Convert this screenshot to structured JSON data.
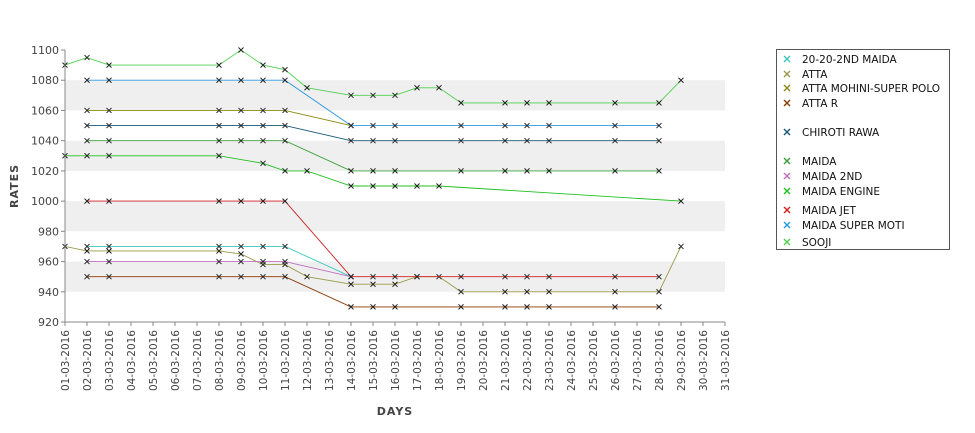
{
  "chart_data": {
    "type": "line",
    "title": "",
    "xlabel": "DAYS",
    "ylabel": "RATES",
    "ylim": [
      920,
      1100
    ],
    "yticks": [
      920,
      940,
      960,
      980,
      1000,
      1020,
      1040,
      1060,
      1080,
      1100
    ],
    "grid": "alternating horizontal bands",
    "legend_position": "right",
    "categories": [
      "01-03-2016",
      "02-03-2016",
      "03-03-2016",
      "04-03-2016",
      "05-03-2016",
      "06-03-2016",
      "07-03-2016",
      "08-03-2016",
      "09-03-2016",
      "10-03-2016",
      "11-03-2016",
      "12-03-2016",
      "13-03-2016",
      "14-03-2016",
      "15-03-2016",
      "16-03-2016",
      "17-03-2016",
      "18-03-2016",
      "19-03-2016",
      "20-03-2016",
      "21-03-2016",
      "22-03-2016",
      "23-03-2016",
      "24-03-2016",
      "25-03-2016",
      "26-03-2016",
      "27-03-2016",
      "28-03-2016",
      "29-03-2016",
      "30-03-2016",
      "31-03-2016"
    ],
    "series": [
      {
        "name": "20-20-2ND MAIDA",
        "color": "#3ec8c0",
        "points": [
          [
            2,
            970
          ],
          [
            3,
            970
          ],
          [
            8,
            970
          ],
          [
            9,
            970
          ],
          [
            10,
            970
          ],
          [
            11,
            970
          ],
          [
            14,
            950
          ]
        ]
      },
      {
        "name": "ATTA",
        "color": "#9a9a4a",
        "points": [
          [
            1,
            970
          ],
          [
            2,
            967
          ],
          [
            3,
            967
          ],
          [
            8,
            967
          ],
          [
            9,
            965
          ],
          [
            10,
            958
          ],
          [
            11,
            958
          ],
          [
            12,
            950
          ],
          [
            14,
            945
          ],
          [
            15,
            945
          ],
          [
            16,
            945
          ],
          [
            17,
            950
          ],
          [
            18,
            950
          ],
          [
            19,
            940
          ],
          [
            21,
            940
          ],
          [
            22,
            940
          ],
          [
            23,
            940
          ],
          [
            26,
            940
          ],
          [
            28,
            940
          ],
          [
            29,
            970
          ]
        ]
      },
      {
        "name": "ATTA MOHINI-SUPER POLO",
        "color": "#8a8a10",
        "points": [
          [
            2,
            1060
          ],
          [
            3,
            1060
          ],
          [
            8,
            1060
          ],
          [
            9,
            1060
          ],
          [
            10,
            1060
          ],
          [
            11,
            1060
          ],
          [
            14,
            1050
          ]
        ]
      },
      {
        "name": "ATTA R",
        "color": "#8b3a00",
        "points": [
          [
            2,
            950
          ],
          [
            3,
            950
          ],
          [
            8,
            950
          ],
          [
            9,
            950
          ],
          [
            10,
            950
          ],
          [
            11,
            950
          ],
          [
            14,
            930
          ],
          [
            15,
            930
          ],
          [
            16,
            930
          ],
          [
            19,
            930
          ],
          [
            21,
            930
          ],
          [
            22,
            930
          ],
          [
            23,
            930
          ],
          [
            26,
            930
          ],
          [
            28,
            930
          ]
        ]
      },
      {
        "name": "CHIROTI RAWA",
        "color": "#1a5a7a",
        "points": [
          [
            2,
            1050
          ],
          [
            3,
            1050
          ],
          [
            8,
            1050
          ],
          [
            9,
            1050
          ],
          [
            10,
            1050
          ],
          [
            11,
            1050
          ],
          [
            14,
            1040
          ],
          [
            15,
            1040
          ],
          [
            16,
            1040
          ],
          [
            19,
            1040
          ],
          [
            21,
            1040
          ],
          [
            22,
            1040
          ],
          [
            23,
            1040
          ],
          [
            26,
            1040
          ],
          [
            28,
            1040
          ]
        ]
      },
      {
        "name": "MAIDA",
        "color": "#3aa03a",
        "points": [
          [
            2,
            1040
          ],
          [
            3,
            1040
          ],
          [
            8,
            1040
          ],
          [
            9,
            1040
          ],
          [
            10,
            1040
          ],
          [
            11,
            1040
          ],
          [
            14,
            1020
          ],
          [
            15,
            1020
          ],
          [
            16,
            1020
          ],
          [
            19,
            1020
          ],
          [
            21,
            1020
          ],
          [
            22,
            1020
          ],
          [
            23,
            1020
          ],
          [
            26,
            1020
          ],
          [
            28,
            1020
          ]
        ]
      },
      {
        "name": "MAIDA 2ND",
        "color": "#c070c0",
        "points": [
          [
            2,
            960
          ],
          [
            3,
            960
          ],
          [
            8,
            960
          ],
          [
            9,
            960
          ],
          [
            10,
            960
          ],
          [
            11,
            960
          ],
          [
            14,
            950
          ]
        ]
      },
      {
        "name": "MAIDA ENGINE",
        "color": "#22c022",
        "points": [
          [
            1,
            1030
          ],
          [
            2,
            1030
          ],
          [
            3,
            1030
          ],
          [
            8,
            1030
          ],
          [
            10,
            1025
          ],
          [
            11,
            1020
          ],
          [
            12,
            1020
          ],
          [
            14,
            1010
          ],
          [
            15,
            1010
          ],
          [
            16,
            1010
          ],
          [
            17,
            1010
          ],
          [
            18,
            1010
          ],
          [
            29,
            1000
          ]
        ]
      },
      {
        "name": "MAIDA JET",
        "color": "#d02020",
        "points": [
          [
            2,
            1000
          ],
          [
            3,
            1000
          ],
          [
            8,
            1000
          ],
          [
            9,
            1000
          ],
          [
            10,
            1000
          ],
          [
            11,
            1000
          ],
          [
            14,
            950
          ],
          [
            15,
            950
          ],
          [
            16,
            950
          ],
          [
            17,
            950
          ],
          [
            19,
            950
          ],
          [
            21,
            950
          ],
          [
            22,
            950
          ],
          [
            23,
            950
          ],
          [
            26,
            950
          ],
          [
            28,
            950
          ]
        ]
      },
      {
        "name": "MAIDA SUPER MOTI",
        "color": "#2a9ae0",
        "points": [
          [
            2,
            1080
          ],
          [
            3,
            1080
          ],
          [
            8,
            1080
          ],
          [
            9,
            1080
          ],
          [
            10,
            1080
          ],
          [
            11,
            1080
          ],
          [
            14,
            1050
          ],
          [
            15,
            1050
          ],
          [
            16,
            1050
          ],
          [
            19,
            1050
          ],
          [
            21,
            1050
          ],
          [
            22,
            1050
          ],
          [
            23,
            1050
          ],
          [
            26,
            1050
          ],
          [
            28,
            1050
          ]
        ]
      },
      {
        "name": "SOOJI",
        "color": "#50d050",
        "points": [
          [
            1,
            1090
          ],
          [
            2,
            1095
          ],
          [
            3,
            1090
          ],
          [
            8,
            1090
          ],
          [
            9,
            1100
          ],
          [
            10,
            1090
          ],
          [
            11,
            1087
          ],
          [
            12,
            1075
          ],
          [
            14,
            1070
          ],
          [
            15,
            1070
          ],
          [
            16,
            1070
          ],
          [
            17,
            1075
          ],
          [
            18,
            1075
          ],
          [
            19,
            1065
          ],
          [
            21,
            1065
          ],
          [
            22,
            1065
          ],
          [
            23,
            1065
          ],
          [
            26,
            1065
          ],
          [
            28,
            1065
          ],
          [
            29,
            1080
          ]
        ]
      }
    ]
  }
}
